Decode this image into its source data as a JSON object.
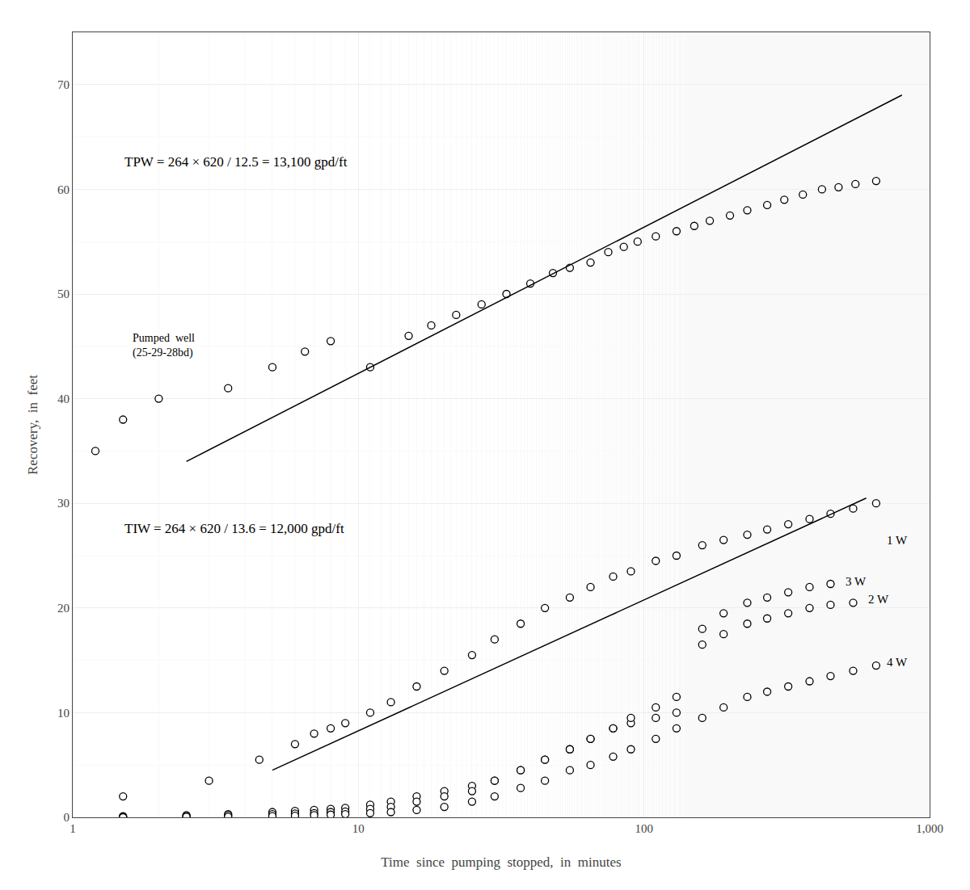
{
  "chart_data": {
    "type": "scatter",
    "xlabel": "Time  since  pumping  stopped,  in  minutes",
    "ylabel": "Recovery,  in  feet",
    "log": "x",
    "grid": true,
    "xlim": [
      1,
      1000
    ],
    "ylim": [
      0,
      75
    ],
    "xticks": [
      1,
      10,
      100,
      {
        "value": 1000,
        "label": "1,000"
      }
    ],
    "yticks": [
      0,
      10,
      20,
      30,
      40,
      50,
      60,
      70
    ],
    "series": [
      {
        "type": "scatter",
        "marker": "circle",
        "color": "black",
        "x": [
          1.2,
          1.5,
          2.0,
          3.5,
          5.0,
          6.5,
          8.0,
          11,
          15,
          18,
          22,
          27,
          33,
          40,
          48,
          55,
          65,
          75,
          85,
          95,
          110,
          130,
          150,
          170,
          200,
          230,
          270,
          310,
          360,
          420,
          480,
          550,
          650
        ],
        "values": [
          35,
          38,
          40,
          41,
          43,
          44.5,
          45.5,
          43,
          46,
          47,
          48,
          49,
          50,
          51,
          52,
          52.5,
          53,
          54,
          54.5,
          55,
          55.5,
          56,
          56.5,
          57,
          57.5,
          58,
          58.5,
          59,
          59.5,
          60,
          60.2,
          60.5,
          60.8
        ]
      },
      {
        "type": "line",
        "line_style": "solid",
        "color": "black",
        "x": [
          2.5,
          800
        ],
        "values": [
          34.0,
          69.0
        ]
      },
      {
        "type": "scatter",
        "marker": "circle",
        "color": "black",
        "x": [
          1.5,
          3,
          4.5,
          6,
          7,
          8,
          9,
          11,
          13,
          16,
          20,
          25,
          30,
          37,
          45,
          55,
          65,
          78,
          90,
          110,
          130,
          160,
          190,
          230,
          270,
          320,
          380,
          450,
          540,
          650
        ],
        "values": [
          2,
          3.5,
          5.5,
          7,
          8,
          8.5,
          9,
          10,
          11,
          12.5,
          14,
          15.5,
          17,
          18.5,
          20,
          21,
          22,
          23,
          23.5,
          24.5,
          25,
          26,
          26.5,
          27,
          27.5,
          28,
          28.5,
          29,
          29.5,
          30
        ]
      },
      {
        "type": "line",
        "line_style": "solid",
        "color": "black",
        "x": [
          5,
          600
        ],
        "values": [
          4.5,
          30.5
        ]
      },
      {
        "type": "scatter",
        "marker": "circle",
        "color": "black",
        "x": [
          1.5,
          2.5,
          3.5,
          5,
          6,
          7,
          8,
          9,
          11,
          13,
          16,
          20,
          25,
          30,
          37,
          45,
          55,
          65,
          78,
          90,
          110,
          130,
          160,
          190,
          230,
          270,
          320,
          380,
          450,
          540
        ],
        "values": [
          0.1,
          0.2,
          0.3,
          0.5,
          0.6,
          0.7,
          0.8,
          0.9,
          1.2,
          1.5,
          2.0,
          2.5,
          3.0,
          3.5,
          4.5,
          5.5,
          6.5,
          7.5,
          8.5,
          9.0,
          9.5,
          10.0,
          16.5,
          17.5,
          18.5,
          19.0,
          19.5,
          20.0,
          20.3,
          20.5
        ]
      },
      {
        "type": "scatter",
        "marker": "circle",
        "color": "black",
        "x": [
          1.5,
          2.5,
          3.5,
          5,
          6,
          7,
          8,
          9,
          11,
          13,
          16,
          20,
          25,
          30,
          37,
          45,
          55,
          65,
          78,
          90,
          110,
          130,
          160,
          190,
          230,
          270,
          320,
          380,
          450
        ],
        "values": [
          0.05,
          0.1,
          0.2,
          0.3,
          0.35,
          0.4,
          0.5,
          0.55,
          0.8,
          1.0,
          1.5,
          2.0,
          2.5,
          3.5,
          4.5,
          5.5,
          6.5,
          7.5,
          8.5,
          9.5,
          10.5,
          11.5,
          18.0,
          19.5,
          20.5,
          21.0,
          21.5,
          22.0,
          22.3
        ]
      },
      {
        "type": "scatter",
        "marker": "circle",
        "color": "black",
        "x": [
          1.5,
          2.5,
          3.5,
          5,
          6,
          7,
          8,
          9,
          11,
          13,
          16,
          20,
          25,
          30,
          37,
          45,
          55,
          65,
          78,
          90,
          110,
          130,
          160,
          190,
          230,
          270,
          320,
          380,
          450,
          540,
          650
        ],
        "values": [
          0.0,
          0.05,
          0.05,
          0.1,
          0.15,
          0.2,
          0.25,
          0.3,
          0.4,
          0.5,
          0.7,
          1.0,
          1.5,
          2.0,
          2.8,
          3.5,
          4.5,
          5.0,
          5.8,
          6.5,
          7.5,
          8.5,
          9.5,
          10.5,
          11.5,
          12.0,
          12.5,
          13.0,
          13.5,
          14.0,
          14.5
        ]
      }
    ],
    "annotations": [
      {
        "text": "1 W"
      },
      {
        "text": "3 W"
      },
      {
        "text": "2 W"
      },
      {
        "text": "4 W"
      },
      {
        "text": "Pumped  well\n(25-29-28bd)"
      },
      {
        "text": "TPW = 264 × 620 / 12.5 = 13,100 gpd/ft"
      },
      {
        "text": "TIW = 264 × 620 / 13.6 = 12,000 gpd/ft"
      }
    ]
  }
}
